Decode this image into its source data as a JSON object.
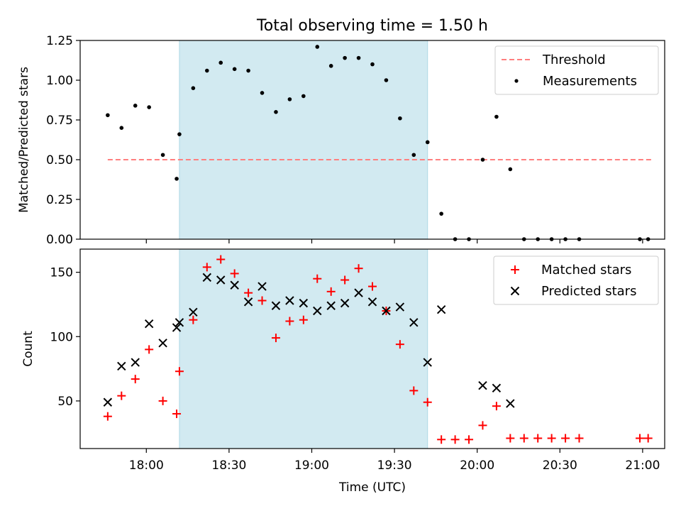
{
  "figure": {
    "title": "Total observing time = 1.50 h"
  },
  "chart_data": [
    {
      "type": "scatter",
      "ylabel": "Matched/Predicted stars",
      "xlabel": "",
      "xlim": [
        "17:36",
        "21:08"
      ],
      "ylim": [
        0,
        1.25
      ],
      "yticks": [
        "0.00",
        "0.25",
        "0.50",
        "0.75",
        "1.00",
        "1.25"
      ],
      "shaded_span": {
        "x0": "18:12",
        "x1": "19:42",
        "color": "#add8e6"
      },
      "threshold": {
        "name": "Threshold",
        "value": 0.5,
        "x0": "17:46",
        "x1": "21:04",
        "color": "#ff7f7f"
      },
      "legend": {
        "position": "top-right"
      },
      "series": [
        {
          "name": "Measurements",
          "color": "#000000",
          "x": [
            "17:46",
            "17:51",
            "17:56",
            "18:01",
            "18:06",
            "18:11",
            "18:12",
            "18:17",
            "18:22",
            "18:27",
            "18:32",
            "18:37",
            "18:42",
            "18:47",
            "18:52",
            "18:57",
            "19:02",
            "19:07",
            "19:12",
            "19:17",
            "19:22",
            "19:27",
            "19:32",
            "19:37",
            "19:42",
            "19:47",
            "19:52",
            "19:57",
            "20:02",
            "20:07",
            "20:12",
            "20:17",
            "20:22",
            "20:27",
            "20:32",
            "20:37",
            "20:59",
            "21:02"
          ],
          "y": [
            0.78,
            0.7,
            0.84,
            0.83,
            0.53,
            0.38,
            0.66,
            0.95,
            1.06,
            1.11,
            1.07,
            1.06,
            0.92,
            0.8,
            0.88,
            0.9,
            1.21,
            1.09,
            1.14,
            1.14,
            1.1,
            1.0,
            0.76,
            0.53,
            0.61,
            0.16,
            0.0,
            0.0,
            0.5,
            0.77,
            0.44,
            0.0,
            0.0,
            0.0,
            0.0,
            0.0,
            0.0,
            0.0
          ]
        }
      ]
    },
    {
      "type": "scatter",
      "ylabel": "Count",
      "xlabel": "Time (UTC)",
      "xlim": [
        "17:36",
        "21:08"
      ],
      "ylim": [
        13,
        168
      ],
      "yticks": [
        "50",
        "100",
        "150"
      ],
      "xticks": [
        "18:00",
        "18:30",
        "19:00",
        "19:30",
        "20:00",
        "20:30",
        "21:00"
      ],
      "shaded_span": {
        "x0": "18:12",
        "x1": "19:42",
        "color": "#add8e6"
      },
      "legend": {
        "position": "top-right"
      },
      "series": [
        {
          "name": "Matched stars",
          "marker": "+",
          "color": "#ff0000",
          "x": [
            "17:46",
            "17:51",
            "17:56",
            "18:01",
            "18:06",
            "18:11",
            "18:12",
            "18:17",
            "18:22",
            "18:27",
            "18:32",
            "18:37",
            "18:42",
            "18:47",
            "18:52",
            "18:57",
            "19:02",
            "19:07",
            "19:12",
            "19:17",
            "19:22",
            "19:27",
            "19:32",
            "19:37",
            "19:42",
            "19:47",
            "19:52",
            "19:57",
            "20:02",
            "20:07",
            "20:12",
            "20:17",
            "20:22",
            "20:27",
            "20:32",
            "20:37",
            "20:59",
            "21:02"
          ],
          "y": [
            38,
            54,
            67,
            90,
            50,
            40,
            73,
            113,
            154,
            160,
            149,
            134,
            128,
            99,
            112,
            113,
            145,
            135,
            144,
            153,
            139,
            120,
            94,
            58,
            49,
            20,
            20,
            20,
            31,
            46,
            21,
            21,
            21,
            21,
            21,
            21,
            21,
            21
          ]
        },
        {
          "name": "Predicted stars",
          "marker": "x",
          "color": "#000000",
          "x": [
            "17:46",
            "17:51",
            "17:56",
            "18:01",
            "18:06",
            "18:11",
            "18:12",
            "18:17",
            "18:22",
            "18:27",
            "18:32",
            "18:37",
            "18:42",
            "18:47",
            "18:52",
            "18:57",
            "19:02",
            "19:07",
            "19:12",
            "19:17",
            "19:22",
            "19:27",
            "19:32",
            "19:37",
            "19:42",
            "19:47",
            "20:02",
            "20:07",
            "20:12"
          ],
          "y": [
            49,
            77,
            80,
            110,
            95,
            107,
            111,
            119,
            146,
            144,
            140,
            127,
            139,
            124,
            128,
            126,
            120,
            124,
            126,
            134,
            127,
            120,
            123,
            111,
            80,
            121,
            62,
            60,
            48
          ]
        }
      ]
    }
  ]
}
